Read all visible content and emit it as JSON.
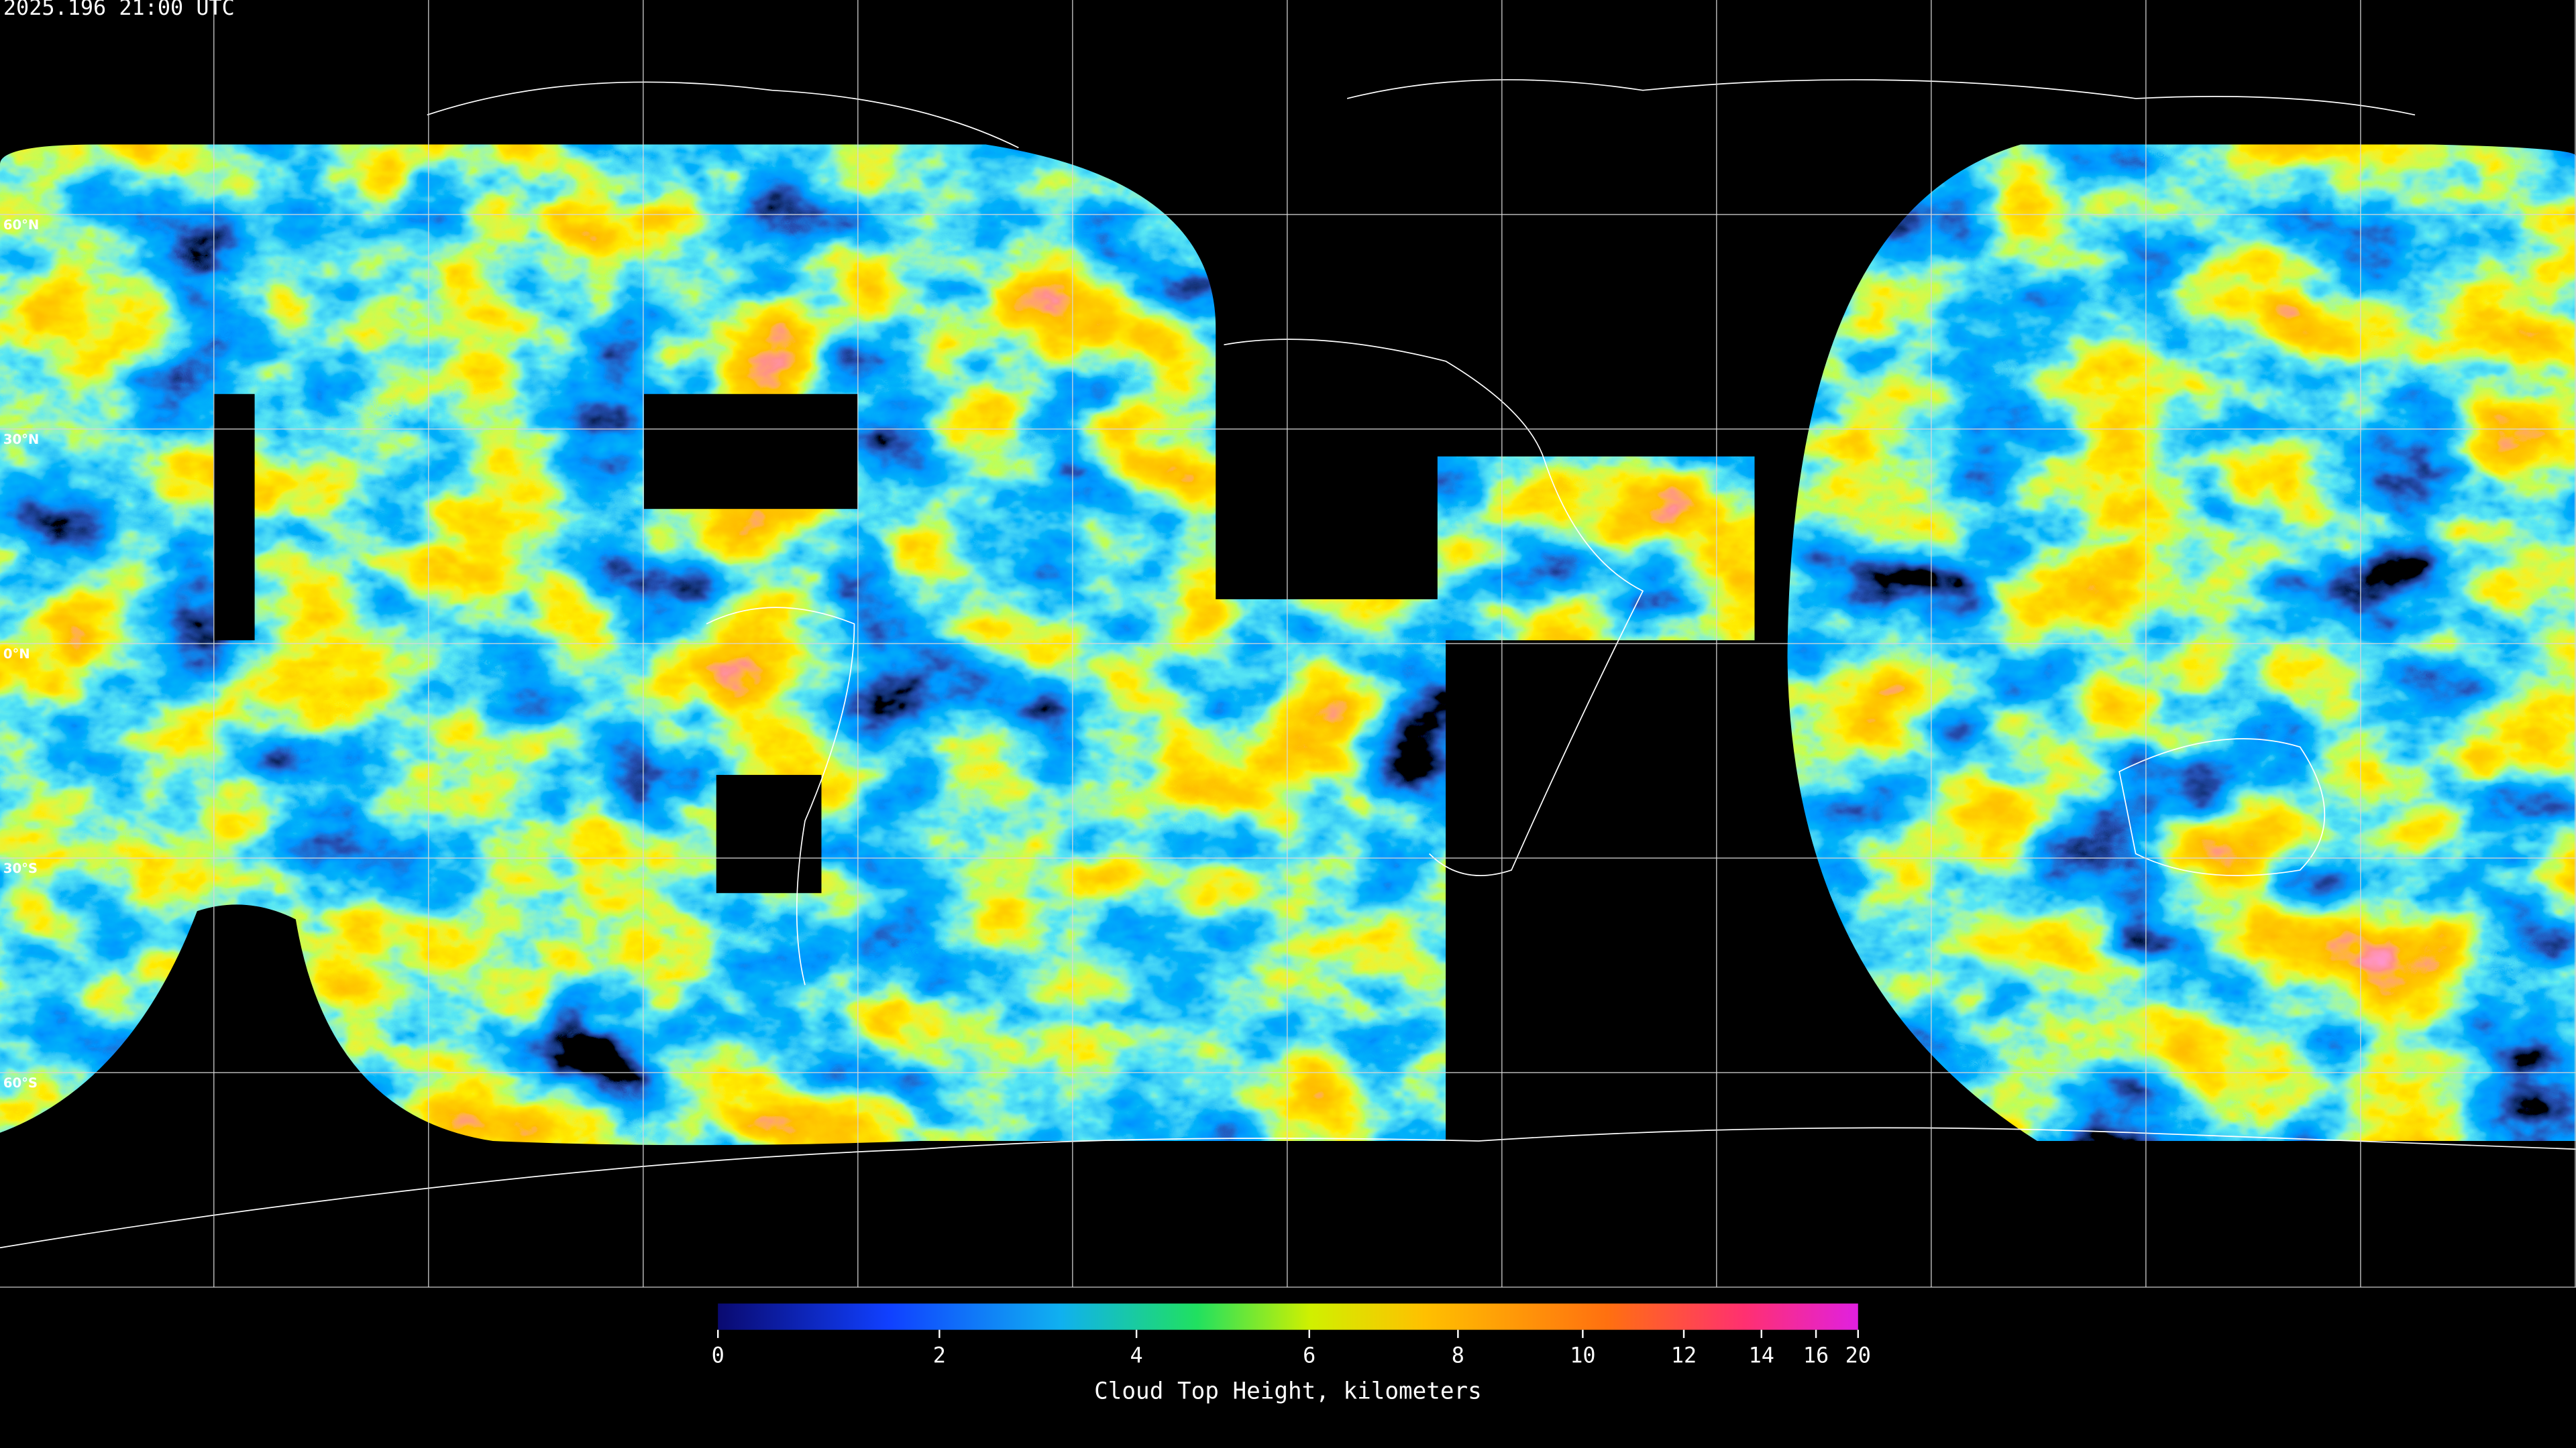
{
  "timestamp": "2025.196 21:00 UTC",
  "map": {
    "latitude_labels": [
      "60°N",
      "30°N",
      "0°N",
      "30°S",
      "60°S"
    ]
  },
  "colorbar": {
    "label": "Cloud Top Height, kilometers",
    "lim": [
      0,
      20
    ],
    "ticks": [
      0,
      2,
      4,
      6,
      8,
      10,
      12,
      14,
      16,
      20
    ]
  }
}
